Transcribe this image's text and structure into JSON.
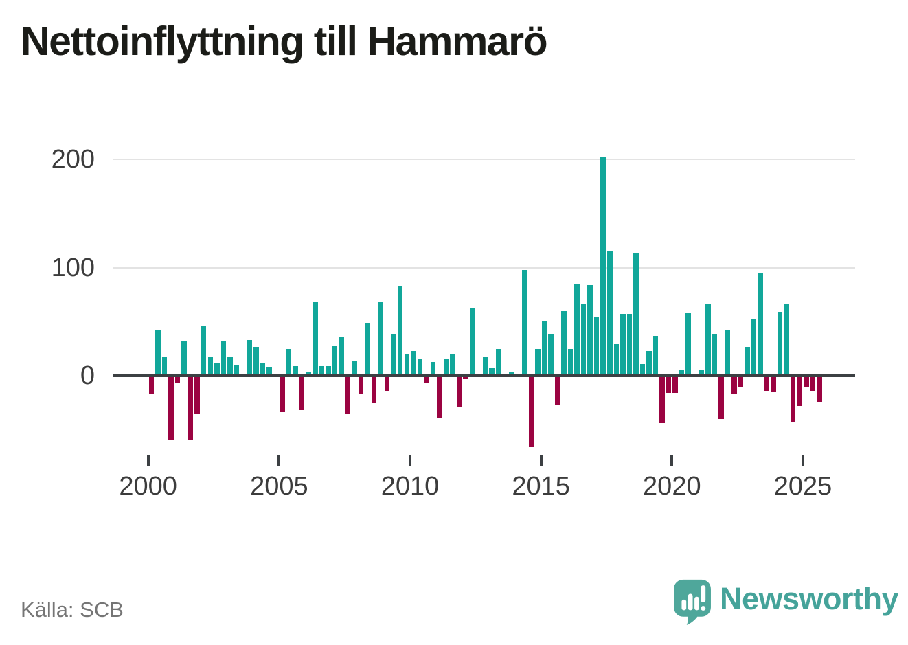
{
  "title": "Nettoinflyttning till Hammarö",
  "source": "Källa: SCB",
  "brand": {
    "name": "Newsworthy",
    "icon": "speech-bubble-bar-chart-icon"
  },
  "colors": {
    "positive_bar": "#11a79a",
    "negative_bar": "#9b0341",
    "grid": "#e3e3e3",
    "zero_line": "#3c4043",
    "axis_text": "#3c3c3c",
    "title_text": "#1b1c18",
    "source_text": "#757575",
    "brand_teal": "#4fa79b"
  },
  "chart_data": {
    "type": "bar",
    "title": "Nettoinflyttning till Hammarö",
    "xlabel": "",
    "ylabel": "",
    "x_unit": "quarter",
    "grid": "horizontal",
    "legend": "none",
    "ylim": [
      -75,
      215
    ],
    "y_ticks": [
      200,
      100,
      0
    ],
    "x_tick_labels": [
      "2000",
      "2005",
      "2010",
      "2015",
      "2020",
      "2025"
    ],
    "quarters": [
      "2000 Q1",
      "2000 Q2",
      "2000 Q3",
      "2000 Q4",
      "2001 Q1",
      "2001 Q2",
      "2001 Q3",
      "2001 Q4",
      "2002 Q1",
      "2002 Q2",
      "2002 Q3",
      "2002 Q4",
      "2003 Q1",
      "2003 Q2",
      "2003 Q3",
      "2003 Q4",
      "2004 Q1",
      "2004 Q2",
      "2004 Q3",
      "2004 Q4",
      "2005 Q1",
      "2005 Q2",
      "2005 Q3",
      "2005 Q4",
      "2006 Q1",
      "2006 Q2",
      "2006 Q3",
      "2006 Q4",
      "2007 Q1",
      "2007 Q2",
      "2007 Q3",
      "2007 Q4",
      "2008 Q1",
      "2008 Q2",
      "2008 Q3",
      "2008 Q4",
      "2009 Q1",
      "2009 Q2",
      "2009 Q3",
      "2009 Q4",
      "2010 Q1",
      "2010 Q2",
      "2010 Q3",
      "2010 Q4",
      "2011 Q1",
      "2011 Q2",
      "2011 Q3",
      "2011 Q4",
      "2012 Q1",
      "2012 Q2",
      "2012 Q3",
      "2012 Q4",
      "2013 Q1",
      "2013 Q2",
      "2013 Q3",
      "2013 Q4",
      "2014 Q1",
      "2014 Q2",
      "2014 Q3",
      "2014 Q4",
      "2015 Q1",
      "2015 Q2",
      "2015 Q3",
      "2015 Q4",
      "2016 Q1",
      "2016 Q2",
      "2016 Q3",
      "2016 Q4",
      "2017 Q1",
      "2017 Q2",
      "2017 Q3",
      "2017 Q4",
      "2018 Q1",
      "2018 Q2",
      "2018 Q3",
      "2018 Q4",
      "2019 Q1",
      "2019 Q2",
      "2019 Q3",
      "2019 Q4",
      "2020 Q1",
      "2020 Q2",
      "2020 Q3",
      "2020 Q4",
      "2021 Q1",
      "2021 Q2",
      "2021 Q3",
      "2021 Q4",
      "2022 Q1",
      "2022 Q2",
      "2022 Q3",
      "2022 Q4",
      "2023 Q1",
      "2023 Q2",
      "2023 Q3",
      "2023 Q4",
      "2024 Q1",
      "2024 Q2",
      "2024 Q3",
      "2024 Q4",
      "2025 Q1",
      "2025 Q2",
      "2025 Q3"
    ],
    "values": [
      -17,
      42,
      17,
      -59,
      -7,
      32,
      -59,
      -35,
      46,
      18,
      12,
      32,
      18,
      10,
      0,
      33,
      27,
      12,
      8,
      2,
      -34,
      25,
      9,
      -32,
      3,
      68,
      9,
      9,
      28,
      36,
      -35,
      14,
      -17,
      49,
      -25,
      68,
      -14,
      39,
      83,
      20,
      23,
      15,
      -7,
      13,
      -39,
      16,
      20,
      -29,
      -3,
      63,
      0,
      17,
      7,
      25,
      2,
      4,
      0,
      98,
      -66,
      25,
      51,
      39,
      -27,
      60,
      25,
      85,
      66,
      84,
      54,
      203,
      116,
      29,
      57,
      57,
      113,
      11,
      23,
      37,
      -44,
      -16,
      -16,
      5,
      58,
      0,
      6,
      67,
      39,
      -40,
      42,
      -17,
      -11,
      27,
      52,
      95,
      -14,
      -15,
      59,
      66,
      -43,
      -28,
      -10,
      -14,
      -24
    ]
  }
}
